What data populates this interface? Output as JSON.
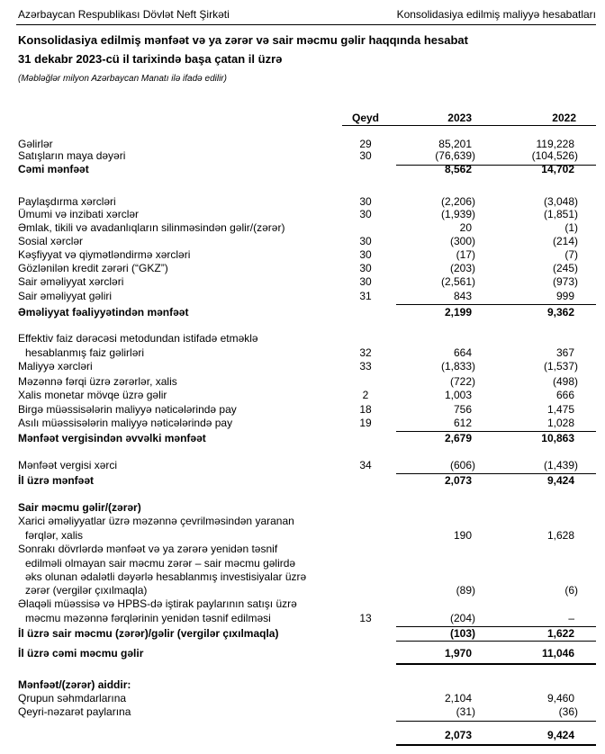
{
  "header": {
    "left": "Azərbaycan Respublikası Dövlət Neft Şirkəti",
    "right": "Konsolidasiya edilmiş maliyyə hesabatları"
  },
  "title": "Konsolidasiya edilmiş mənfəət və ya zərər və sair məcmu gəlir haqqında hesabat",
  "subtitle": "31 dekabr 2023-cü il tarixində başa çatan il üzrə",
  "units": "(Məbləğlər milyon Azərbaycan Manatı ilə ifadə edilir)",
  "columns": {
    "note": "Qeyd",
    "y2023": "2023",
    "y2022": "2022"
  },
  "rows": [
    {
      "label": "Gəlirlər",
      "note": "29",
      "v2023": "85,201",
      "v2022": "119,228"
    },
    {
      "label": "Satışların maya dəyəri",
      "note": "30",
      "v2023": "(76,639)",
      "v2022": "(104,526)"
    },
    {
      "label": "Cəmi mənfəət",
      "note": "",
      "v2023": "8,562",
      "v2022": "14,702",
      "bold": true
    },
    {
      "label": "Paylaşdırma xərcləri",
      "note": "30",
      "v2023": "(2,206)",
      "v2022": "(3,048)"
    },
    {
      "label": "Ümumi və inzibati xərclər",
      "note": "30",
      "v2023": "(1,939)",
      "v2022": "(1,851)"
    },
    {
      "label": "Əmlak, tikili və avadanlıqların silinməsindən gəlir/(zərər)",
      "note": "",
      "v2023": "20",
      "v2022": "(1)"
    },
    {
      "label": "Sosial xərclər",
      "note": "30",
      "v2023": "(300)",
      "v2022": "(214)"
    },
    {
      "label": "Kəşfiyyat və qiymətləndirmə xərcləri",
      "note": "30",
      "v2023": "(17)",
      "v2022": "(7)"
    },
    {
      "label": "Gözlənilən kredit zərəri (“GKZ”)",
      "note": "30",
      "v2023": "(203)",
      "v2022": "(245)"
    },
    {
      "label": "Sair əməliyyat xərcləri",
      "note": "30",
      "v2023": "(2,561)",
      "v2022": "(973)"
    },
    {
      "label": "Sair əməliyyat gəliri",
      "note": "31",
      "v2023": "843",
      "v2022": "999"
    },
    {
      "label": "Əməliyyat fəaliyyətindən mənfəət",
      "note": "",
      "v2023": "2,199",
      "v2022": "9,362",
      "bold": true
    },
    {
      "label": "Effektiv faiz dərəcəsi metodundan istifadə etməklə",
      "note": "",
      "v2023": "",
      "v2022": ""
    },
    {
      "label": "hesablanmış faiz gəlirləri",
      "note": "32",
      "v2023": "664",
      "v2022": "367",
      "indent": true
    },
    {
      "label": "Maliyyə xərcləri",
      "note": "33",
      "v2023": "(1,833)",
      "v2022": "(1,537)"
    },
    {
      "label": "Məzənnə fərqi üzrə zərərlər, xalis",
      "note": "",
      "v2023": "(722)",
      "v2022": "(498)"
    },
    {
      "label": "Xalis monetar mövqe üzrə gəlir",
      "note": "2",
      "v2023": "1,003",
      "v2022": "666"
    },
    {
      "label": "Birgə müəssisələrin maliyyə nəticələrində pay",
      "note": "18",
      "v2023": "756",
      "v2022": "1,475"
    },
    {
      "label": "Asılı müəssisələrin maliyyə nəticələrində pay",
      "note": "19",
      "v2023": "612",
      "v2022": "1,028"
    },
    {
      "label": "Mənfəət vergisindən əvvəlki mənfəət",
      "note": "",
      "v2023": "2,679",
      "v2022": "10,863",
      "bold": true
    },
    {
      "label": "Mənfəət vergisi xərci",
      "note": "34",
      "v2023": "(606)",
      "v2022": "(1,439)"
    },
    {
      "label": "İl üzrə mənfəət",
      "note": "",
      "v2023": "2,073",
      "v2022": "9,424",
      "bold": true
    },
    {
      "label": "Sair məcmu gəlir/(zərər)",
      "note": "",
      "v2023": "",
      "v2022": "",
      "bold": true
    },
    {
      "label": "Xarici əməliyyatlar üzrə məzənnə çevrilməsindən yaranan",
      "note": "",
      "v2023": "",
      "v2022": ""
    },
    {
      "label": "fərqlər, xalis",
      "note": "",
      "v2023": "190",
      "v2022": "1,628",
      "indent": true
    },
    {
      "label": "Sonrakı dövrlərdə mənfəət və ya zərərə yenidən təsnif",
      "note": "",
      "v2023": "",
      "v2022": ""
    },
    {
      "label": "edilməli olmayan sair məcmu zərər – sair məcmu gəlirdə",
      "note": "",
      "v2023": "",
      "v2022": "",
      "indent": true
    },
    {
      "label": "əks olunan ədalətli dəyərlə hesablanmış investisiyalar üzrə",
      "note": "",
      "v2023": "",
      "v2022": "",
      "indent": true
    },
    {
      "label": "zərər (vergilər çıxılmaqla)",
      "note": "",
      "v2023": "(89)",
      "v2022": "(6)",
      "indent": true
    },
    {
      "label": "Əlaqəli müəssisə və HPBS-də iştirak paylarının satışı üzrə",
      "note": "",
      "v2023": "",
      "v2022": ""
    },
    {
      "label": "məcmu məzənnə fərqlərinin yenidən təsnif edilməsi",
      "note": "13",
      "v2023": "(204)",
      "v2022": "–",
      "indent": true
    },
    {
      "label": "İl üzrə sair məcmu (zərər)/gəlir (vergilər çıxılmaqla)",
      "note": "",
      "v2023": "(103)",
      "v2022": "1,622",
      "bold": true
    },
    {
      "label": "İl üzrə cəmi məcmu gəlir",
      "note": "",
      "v2023": "1,970",
      "v2022": "11,046",
      "bold": true
    },
    {
      "label": "Mənfəət/(zərər) aiddir:",
      "note": "",
      "v2023": "",
      "v2022": "",
      "bold": true
    },
    {
      "label": "Qrupun səhmdarlarına",
      "note": "",
      "v2023": "2,104",
      "v2022": "9,460"
    },
    {
      "label": "Qeyri-nəzarət paylarına",
      "note": "",
      "v2023": "(31)",
      "v2022": "(36)"
    },
    {
      "label": "",
      "note": "",
      "v2023": "2,073",
      "v2022": "9,424",
      "bold": true
    }
  ]
}
